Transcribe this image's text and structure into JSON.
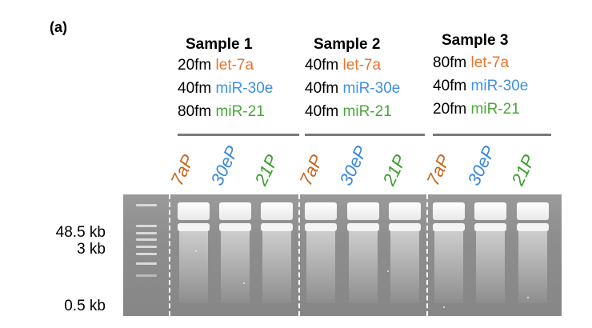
{
  "panel_label": "(a)",
  "samples": [
    {
      "title": "Sample 1",
      "rows": [
        {
          "amount": "20fm",
          "target": "let-7a",
          "color": "#e8732a"
        },
        {
          "amount": "40fm",
          "target": "miR-30e",
          "color": "#3f8fe0"
        },
        {
          "amount": "80fm",
          "target": "miR-21",
          "color": "#4aa73a"
        }
      ]
    },
    {
      "title": "Sample 2",
      "rows": [
        {
          "amount": "40fm",
          "target": "let-7a",
          "color": "#e8732a"
        },
        {
          "amount": "40fm",
          "target": "miR-30e",
          "color": "#3f8fe0"
        },
        {
          "amount": "40fm",
          "target": "miR-21",
          "color": "#4aa73a"
        }
      ]
    },
    {
      "title": "Sample 3",
      "rows": [
        {
          "amount": "80fm",
          "target": "let-7a",
          "color": "#e8732a"
        },
        {
          "amount": "40fm",
          "target": "miR-30e",
          "color": "#3f8fe0"
        },
        {
          "amount": "20fm",
          "target": "miR-21",
          "color": "#4aa73a"
        }
      ]
    }
  ],
  "lane_labels": [
    {
      "text": "7aP",
      "color": "#c8651f"
    },
    {
      "text": "30eP",
      "color": "#3a86d6"
    },
    {
      "text": "21P",
      "color": "#3f9a30"
    },
    {
      "text": "7aP",
      "color": "#c8651f"
    },
    {
      "text": "30eP",
      "color": "#3a86d6"
    },
    {
      "text": "21P",
      "color": "#3f9a30"
    },
    {
      "text": "7aP",
      "color": "#c8651f"
    },
    {
      "text": "30eP",
      "color": "#3a86d6"
    },
    {
      "text": "21P",
      "color": "#3f9a30"
    }
  ],
  "size_markers": [
    "48.5 kb",
    "3 kb",
    "0.5 kb"
  ],
  "colors": {
    "orange": "#e8732a",
    "blue": "#3f8fe0",
    "green": "#4aa73a",
    "separator": "#7a7a7a",
    "gel": "#8e8e8e"
  }
}
